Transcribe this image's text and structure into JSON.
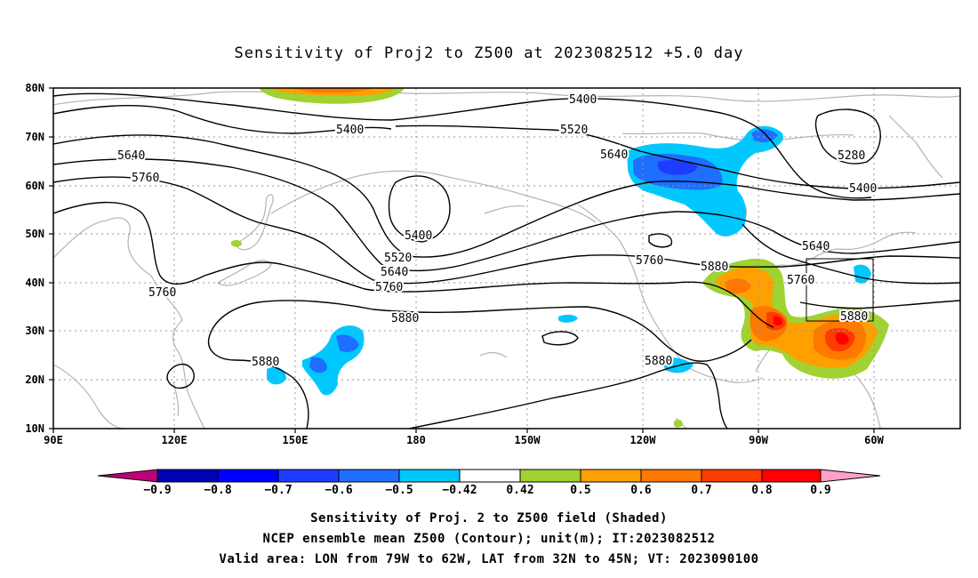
{
  "title": "Sensitivity of Proj2 to Z500 at 2023082512 +5.0 day",
  "lat_labels": [
    "80N",
    "70N",
    "60N",
    "50N",
    "40N",
    "30N",
    "20N",
    "10N"
  ],
  "lon_labels": [
    "90E",
    "120E",
    "150E",
    "180",
    "150W",
    "120W",
    "90W",
    "60W"
  ],
  "contour_labels": {
    "c5400_top": "5400",
    "c5400_left": "5400",
    "c5520_top": "5520",
    "c5640_ne": "5640",
    "c5280": "5280",
    "c5400_east": "5400",
    "c5640_west": "5640",
    "c5760_west": "5760",
    "c5400_low": "5400",
    "c5520_mid": "5520",
    "c5640_mid": "5640",
    "c5760_mid": "5760",
    "c5880_mid": "5880",
    "c5760_sw": "5760",
    "c5880_sw": "5880",
    "c5760_pac": "5760",
    "c5880_pac": "5880",
    "c5640_east": "5640",
    "c5760_box": "5760",
    "c5880_box": "5880",
    "c5880_sub": "5880"
  },
  "colorbar": {
    "ticks": [
      "−0.9",
      "−0.8",
      "−0.7",
      "−0.6",
      "−0.5",
      "−0.42",
      "0.42",
      "0.5",
      "0.6",
      "0.7",
      "0.8",
      "0.9"
    ],
    "colors": {
      "below": "#c0007a",
      "c1": "#0000b4",
      "c2": "#0000ff",
      "c3": "#1e3cff",
      "c4": "#1e6eff",
      "c5": "#00c8ff",
      "white": "#ffffff",
      "g": "#a0d232",
      "o1": "#ffa000",
      "o2": "#ff7800",
      "o3": "#ff3c00",
      "r": "#ff0000",
      "above": "#ffa0c8"
    }
  },
  "captions": {
    "line1": "Sensitivity of Proj. 2 to Z500 field (Shaded)",
    "line2": "NCEP ensemble mean Z500 (Contour); unit(m); IT:2023082512",
    "line3": "Valid area: LON from 79W to 62W, LAT from 32N to 45N; VT: 2023090100"
  }
}
